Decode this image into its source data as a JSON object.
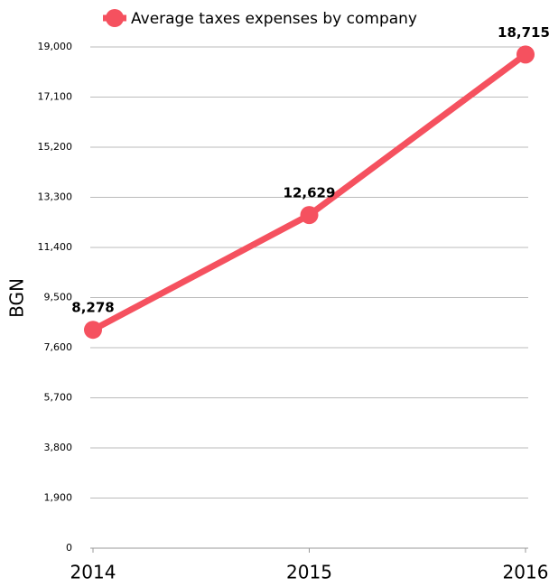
{
  "chart_data": {
    "type": "line",
    "categories": [
      "2014",
      "2015",
      "2016"
    ],
    "series": [
      {
        "name": "Average taxes expenses by company",
        "color": "#f5515f",
        "values": [
          8278,
          12629,
          18715
        ],
        "value_labels": [
          "8,278",
          "12,629",
          "18,715"
        ]
      }
    ],
    "y_label": "BGN",
    "ylim": [
      0,
      19000
    ],
    "yticks": [
      0,
      {
        "value": 1900,
        "label": "1,900"
      },
      {
        "value": 3800,
        "label": "3,800"
      },
      {
        "value": 5700,
        "label": "5,700"
      },
      {
        "value": 7600,
        "label": "7,600"
      },
      {
        "value": 9500,
        "label": "9,500"
      },
      {
        "value": 11400,
        "label": "11,400"
      },
      {
        "value": 13300,
        "label": "13,300"
      },
      {
        "value": 15200,
        "label": "15,200"
      },
      {
        "value": 17100,
        "label": "17,100"
      },
      {
        "value": 19000,
        "label": "19,000"
      }
    ],
    "grid": true
  }
}
